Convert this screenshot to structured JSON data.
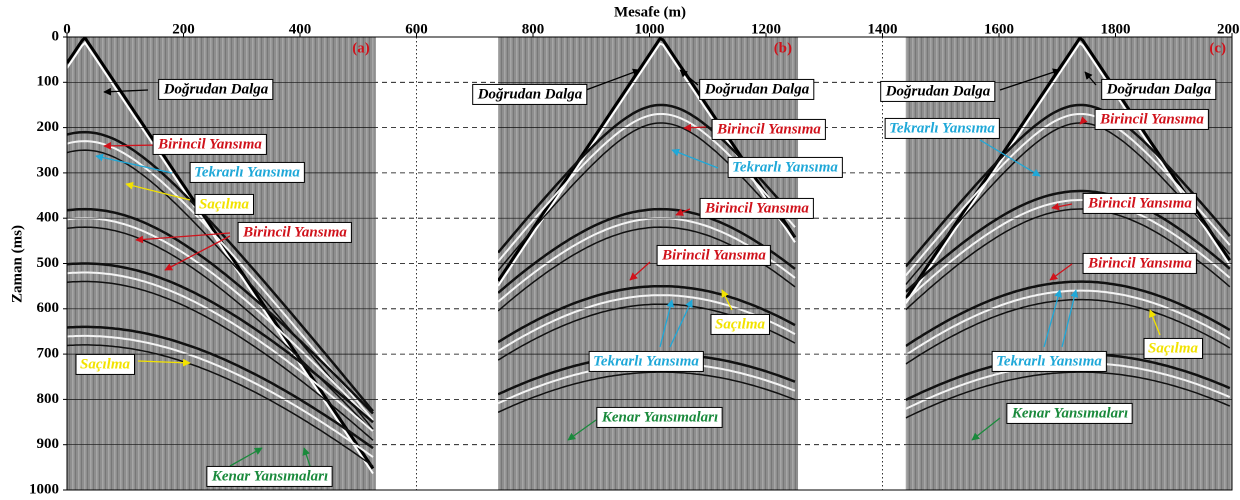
{
  "chart_data": {
    "type": "seismic",
    "x_label": "Mesafe (m)",
    "y_label": "Zaman (ms)",
    "xlim": [
      0,
      2000
    ],
    "ylim": [
      0,
      1000
    ],
    "y_inverted": true,
    "xticks": [
      0,
      200,
      400,
      600,
      800,
      1000,
      1200,
      1400,
      1600,
      1800,
      2000
    ],
    "yticks": [
      0,
      100,
      200,
      300,
      400,
      500,
      600,
      700,
      800,
      900,
      1000
    ],
    "grid": true,
    "panels": [
      {
        "label": "(a)",
        "xlim": [
          0,
          530
        ]
      },
      {
        "label": "(b)",
        "xlim": [
          740,
          1255
        ]
      },
      {
        "label": "(c)",
        "xlim": [
          1440,
          2000
        ]
      }
    ],
    "annotations": [
      {
        "text": "Doğrudan Dalga",
        "color": "#000000"
      },
      {
        "text": "Birincil Yansıma",
        "color": "#d0121b"
      },
      {
        "text": "Tekrarlı Yansıma",
        "color": "#1fa8d8"
      },
      {
        "text": "Saçılma",
        "color": "#f2e200"
      },
      {
        "text": "Birincil Yansıma",
        "color": "#d0121b"
      },
      {
        "text": "Saçılma",
        "color": "#f2e200"
      },
      {
        "text": "Kenar Yansımaları",
        "color": "#1a8a3c"
      },
      {
        "text": "Doğrudan Dalga",
        "color": "#000000"
      },
      {
        "text": "Doğrudan Dalga",
        "color": "#000000"
      },
      {
        "text": "Birincil Yansıma",
        "color": "#d0121b"
      },
      {
        "text": "Tekrarlı Yansıma",
        "color": "#1fa8d8"
      },
      {
        "text": "Birincil Yansıma",
        "color": "#d0121b"
      },
      {
        "text": "Birincil Yansıma",
        "color": "#d0121b"
      },
      {
        "text": "Saçılma",
        "color": "#f2e200"
      },
      {
        "text": "Tekrarlı Yansıma",
        "color": "#1fa8d8"
      },
      {
        "text": "Kenar Yansımaları",
        "color": "#1a8a3c"
      },
      {
        "text": "Doğrudan Dalga",
        "color": "#000000"
      },
      {
        "text": "Doğrudan Dalga",
        "color": "#000000"
      },
      {
        "text": "Tekrarlı Yansıma",
        "color": "#1fa8d8"
      },
      {
        "text": "Birincil Yansıma",
        "color": "#d0121b"
      },
      {
        "text": "Birincil Yansıma",
        "color": "#d0121b"
      },
      {
        "text": "Birincil Yansıma",
        "color": "#d0121b"
      },
      {
        "text": "Saçılma",
        "color": "#f2e200"
      },
      {
        "text": "Tekrarlı Yansıma",
        "color": "#1fa8d8"
      },
      {
        "text": "Kenar Yansımaları",
        "color": "#1a8a3c"
      }
    ]
  }
}
